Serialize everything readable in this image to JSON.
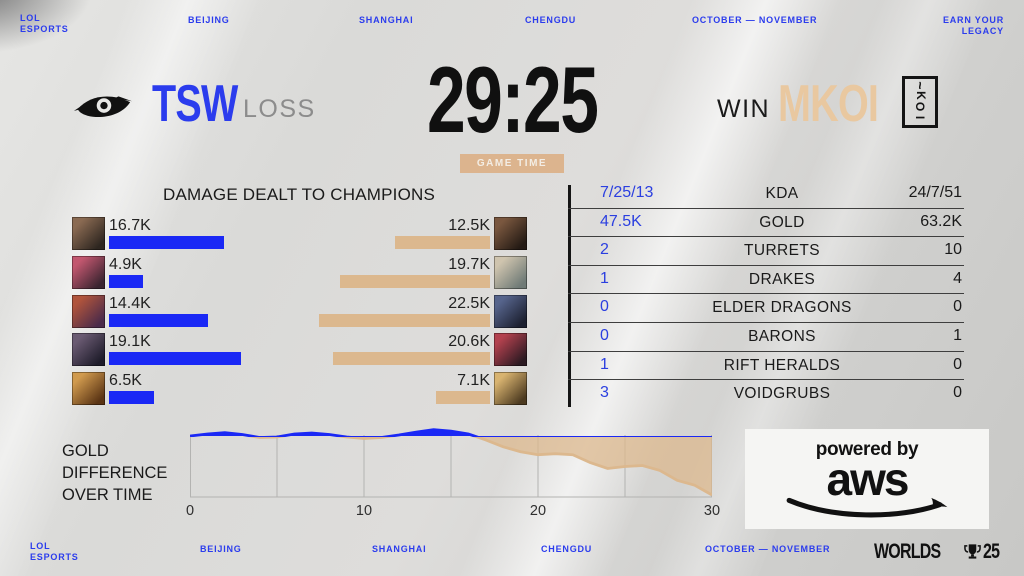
{
  "colors": {
    "accent_blue": "#2b3ced",
    "value_blue": "#2b3fe0",
    "bar_blue": "#1a28f5",
    "bar_tan": "#dcb88e",
    "tan_text": "#e9c8a0",
    "badge_bg": "#dcb48e",
    "timer_black": "#101010",
    "result_gray": "#8c8c8c",
    "text_dark": "#1a1a1a",
    "grid_gray": "#b3b3b1",
    "aws_bg": "#f5f5f3"
  },
  "event_bar": {
    "lol_esports": "LOL\nESPORTS",
    "cities": [
      "BEIJING",
      "SHANGHAI",
      "CHENGDU"
    ],
    "dates": "OCTOBER — NOVEMBER",
    "slogan": "EARN YOUR\nLEGACY"
  },
  "scoreboard": {
    "left": {
      "name": "TSW",
      "result": "LOSS"
    },
    "right": {
      "name": "MKOI",
      "result": "WIN",
      "logo_letters": [
        "K",
        "O",
        "I"
      ],
      "logo_tilde": "~"
    },
    "timer": "29:25",
    "timer_label": "GAME TIME"
  },
  "damage": {
    "title": "DAMAGE DEALT TO CHAMPIONS",
    "left_rows": [
      {
        "value": "16.7K",
        "k": 16.7,
        "portrait": [
          "#8a6a52",
          "#2e2620"
        ]
      },
      {
        "value": "4.9K",
        "k": 4.9,
        "portrait": [
          "#c2576f",
          "#3a2430"
        ]
      },
      {
        "value": "14.4K",
        "k": 14.4,
        "portrait": [
          "#b0543c",
          "#4a2a4a"
        ]
      },
      {
        "value": "19.1K",
        "k": 19.1,
        "portrait": [
          "#6a5a72",
          "#1e1c2a"
        ]
      },
      {
        "value": "6.5K",
        "k": 6.5,
        "portrait": [
          "#d09a4e",
          "#5a3414"
        ]
      }
    ],
    "right_rows": [
      {
        "value": "12.5K",
        "k": 12.5,
        "portrait": [
          "#7a573f",
          "#241a14"
        ]
      },
      {
        "value": "19.7K",
        "k": 19.7,
        "portrait": [
          "#cfc4ae",
          "#6f7a76"
        ]
      },
      {
        "value": "22.5K",
        "k": 22.5,
        "portrait": [
          "#56648c",
          "#1c2030"
        ]
      },
      {
        "value": "20.6K",
        "k": 20.6,
        "portrait": [
          "#b2414e",
          "#2c1a22"
        ]
      },
      {
        "value": "7.1K",
        "k": 7.1,
        "portrait": [
          "#d8b370",
          "#4c3a20"
        ]
      }
    ]
  },
  "stats_table": {
    "rows": [
      {
        "left": "7/25/13",
        "label": "KDA",
        "right": "24/7/51"
      },
      {
        "left": "47.5K",
        "label": "GOLD",
        "right": "63.2K"
      },
      {
        "left": "2",
        "label": "TURRETS",
        "right": "10"
      },
      {
        "left": "1",
        "label": "DRAKES",
        "right": "4"
      },
      {
        "left": "0",
        "label": "ELDER DRAGONS",
        "right": "0"
      },
      {
        "left": "0",
        "label": "BARONS",
        "right": "1"
      },
      {
        "left": "1",
        "label": "RIFT HERALDS",
        "right": "0"
      },
      {
        "left": "3",
        "label": "VOIDGRUBS",
        "right": "0"
      }
    ]
  },
  "gold_chart": {
    "title": "GOLD\nDIFFERENCE\nOVER TIME",
    "chart_data": {
      "type": "area",
      "title": "GOLD DIFFERENCE OVER TIME",
      "x_label_unit": "minutes",
      "x": [
        0,
        1,
        2,
        3,
        4,
        5,
        6,
        7,
        8,
        9,
        10,
        11,
        12,
        13,
        14,
        15,
        16,
        17,
        18,
        19,
        20,
        21,
        22,
        23,
        24,
        25,
        26,
        27,
        28,
        29,
        30
      ],
      "gold_diff": [
        0,
        200,
        350,
        150,
        -150,
        -100,
        200,
        300,
        150,
        -100,
        -250,
        -150,
        100,
        400,
        650,
        500,
        200,
        -400,
        -1100,
        -1600,
        -1900,
        -1800,
        -1900,
        -2700,
        -3300,
        -3100,
        -3000,
        -3500,
        -4500,
        -5000,
        -6000
      ],
      "xticks": [
        "0",
        "10",
        "20",
        "30"
      ],
      "grid_minutes": [
        0,
        5,
        10,
        15,
        20,
        25,
        30
      ],
      "xlim": [
        0,
        30
      ],
      "ylim": [
        -6200,
        700
      ],
      "legend": "none",
      "positive_color": "#1a28f5",
      "negative_color": "#dcb88e"
    }
  },
  "aws": {
    "powered_by": "powered by",
    "brand": "aws"
  },
  "worlds_logo": {
    "name": "WORLDS",
    "year": "25"
  }
}
